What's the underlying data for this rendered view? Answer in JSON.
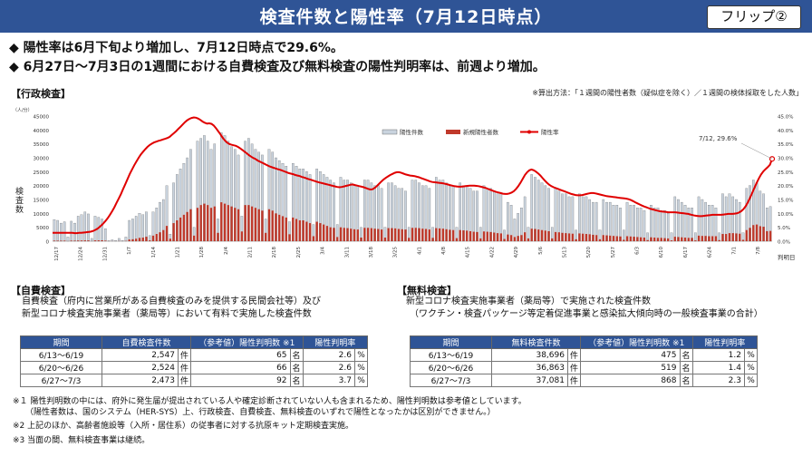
{
  "header": {
    "title": "検査件数と陽性率（7月12日時点）",
    "flip": "フリップ②"
  },
  "bullets": [
    "◆ 陽性率は6月下旬より増加し、7月12日時点で29.6%。",
    "◆ 6月27日～7月3日の1週間における自費検査及び無料検査の陽性判明率は、前週より増加。"
  ],
  "admin": {
    "label": "【行政検査】",
    "formula": "※算出方法：「１週間の陽性者数（疑似症を除く）／１週間の検体採取をした人数」"
  },
  "chart_data": {
    "type": "bar",
    "ylabel": "検査数",
    "yunit": "（人/分）",
    "xlabel": "判明日",
    "ylim": [
      0,
      45000
    ],
    "y2lim": [
      0,
      45
    ],
    "yticks": [
      "0",
      "5000",
      "10000",
      "15000",
      "20000",
      "25000",
      "30000",
      "35000",
      "40000",
      "45000"
    ],
    "y2ticks": [
      "0.0%",
      "5.0%",
      "10.0%",
      "15.0%",
      "20.0%",
      "25.0%",
      "30.0%",
      "35.0%",
      "40.0%",
      "45.0%"
    ],
    "xticks": [
      "12/17",
      "12/24",
      "12/31",
      "1/7",
      "1/14",
      "1/21",
      "1/28",
      "2/4",
      "2/11",
      "2/18",
      "2/25",
      "3/4",
      "3/11",
      "3/18",
      "3/25",
      "4/1",
      "4/8",
      "4/15",
      "4/22",
      "4/29",
      "5/6",
      "5/13",
      "5/20",
      "5/27",
      "6/3",
      "6/10",
      "6/17",
      "6/24",
      "7/1",
      "7/8"
    ],
    "legend": [
      "陽性件数",
      "新規陽性者数",
      "陽性率"
    ],
    "colors": {
      "tests": "#c9d3de",
      "positives": "#c0392b",
      "rate": "#e00000"
    },
    "annotation": "7/12, 29.6%",
    "series": [
      {
        "name": "陽性件数",
        "values": [
          7800,
          7500,
          6500,
          7000,
          1500,
          7200,
          6500,
          9000,
          9500,
          10500,
          9800,
          1000,
          9000,
          8600,
          8000,
          4500,
          200,
          500,
          300,
          1000,
          300,
          1500,
          7500,
          8000,
          9000,
          10000,
          9500,
          10500,
          2000,
          10500,
          12000,
          14000,
          15000,
          20000,
          2500,
          21000,
          24000,
          26000,
          28000,
          30000,
          33000,
          5000,
          36000,
          37000,
          38000,
          36000,
          33000,
          35000,
          8000,
          39000,
          38000,
          36000,
          34000,
          33000,
          31000,
          9000,
          36000,
          37000,
          35000,
          33000,
          32000,
          31000,
          8000,
          33000,
          32000,
          30000,
          29000,
          28000,
          27000,
          7000,
          28000,
          27000,
          26000,
          26000,
          25000,
          24000,
          6000,
          26000,
          25000,
          24000,
          23000,
          22000,
          21000,
          6000,
          23000,
          22000,
          22000,
          21000,
          20000,
          20000,
          5000,
          22000,
          22000,
          21000,
          20000,
          20000,
          19000,
          5000,
          21000,
          21000,
          20000,
          19000,
          19000,
          18000,
          5000,
          22000,
          22000,
          21000,
          20000,
          20000,
          19000,
          5000,
          23000,
          22000,
          22000,
          21000,
          20000,
          20000,
          5000,
          21000,
          20000,
          20000,
          19000,
          18000,
          18000,
          5000,
          20000,
          19000,
          19000,
          18000,
          17000,
          17000,
          4000,
          14000,
          13000,
          8000,
          10000,
          12000,
          16000,
          5000,
          24000,
          23000,
          22000,
          21000,
          20000,
          19000,
          5000,
          19000,
          18000,
          17000,
          17000,
          16000,
          16000,
          4000,
          17000,
          16000,
          16000,
          15000,
          14000,
          14000,
          4000,
          15000,
          14000,
          14000,
          13000,
          13000,
          12000,
          4000,
          14000,
          13000,
          13000,
          12000,
          12000,
          11000,
          3000,
          13000,
          12000,
          12000,
          11000,
          11000,
          10000,
          3000,
          16000,
          15000,
          14000,
          13000,
          12000,
          12000,
          3000,
          16000,
          15000,
          14000,
          13000,
          13000,
          12000,
          3000,
          17000,
          16000,
          17000,
          16000,
          15000,
          14000,
          3000,
          19000,
          20000,
          22000,
          21000,
          18000,
          17000,
          12000,
          12500
        ]
      },
      {
        "name": "新規陽性者数",
        "values": [
          200,
          200,
          180,
          200,
          40,
          200,
          190,
          250,
          260,
          300,
          280,
          40,
          300,
          310,
          320,
          200,
          20,
          30,
          20,
          50,
          20,
          100,
          600,
          700,
          900,
          1200,
          1300,
          1600,
          300,
          2000,
          2600,
          3200,
          4000,
          5500,
          900,
          6500,
          7500,
          8500,
          9500,
          10500,
          11500,
          2000,
          12000,
          13000,
          13500,
          13000,
          12000,
          12500,
          3000,
          14000,
          13500,
          13000,
          12500,
          12000,
          11500,
          3500,
          13000,
          13000,
          12500,
          12000,
          11500,
          11000,
          3000,
          11500,
          11000,
          10000,
          9500,
          9000,
          8500,
          2500,
          8500,
          8000,
          7500,
          7500,
          7000,
          6500,
          1800,
          7000,
          6500,
          6000,
          5500,
          5000,
          4800,
          1500,
          5000,
          4800,
          4700,
          4500,
          4300,
          4200,
          1300,
          4800,
          4800,
          4700,
          4500,
          4400,
          4200,
          1300,
          4700,
          4700,
          4600,
          4400,
          4300,
          4200,
          1200,
          4800,
          4800,
          4700,
          4500,
          4400,
          4200,
          1200,
          4700,
          4600,
          4500,
          4300,
          4100,
          4000,
          1100,
          4000,
          3900,
          3800,
          3600,
          3400,
          3300,
          1000,
          3500,
          3400,
          3300,
          3100,
          2900,
          2800,
          800,
          2400,
          2200,
          1500,
          1900,
          2200,
          3200,
          1000,
          4500,
          4400,
          4200,
          4000,
          3800,
          3600,
          1000,
          3300,
          3200,
          3000,
          2900,
          2800,
          2700,
          700,
          2800,
          2700,
          2600,
          2500,
          2300,
          2200,
          700,
          2200,
          2100,
          2000,
          1900,
          1800,
          1700,
          500,
          1800,
          1700,
          1600,
          1500,
          1400,
          1300,
          400,
          1400,
          1300,
          1200,
          1200,
          1100,
          1000,
          300,
          1600,
          1500,
          1400,
          1300,
          1200,
          1200,
          300,
          2000,
          1900,
          1900,
          1800,
          1800,
          1800,
          400,
          2600,
          2600,
          2900,
          2900,
          2800,
          2700,
          500,
          4000,
          4800,
          5800,
          6000,
          5400,
          5200,
          3600,
          3700
        ]
      },
      {
        "name": "陽性率",
        "values": [
          3.0,
          3.0,
          3.0,
          3.0,
          3.0,
          3.0,
          3.0,
          3.0,
          3.0,
          3.0,
          2.9,
          2.9,
          3.0,
          3.0,
          3.1,
          3.2,
          3.3,
          3.4,
          3.6,
          3.9,
          4.3,
          4.9,
          5.6,
          6.4,
          7.3,
          8.3,
          9.5,
          10.8,
          12.2,
          13.8,
          15.4,
          17.0,
          18.8,
          20.6,
          22.4,
          24.2,
          25.8,
          27.3,
          28.7,
          30.0,
          31.2,
          32.2,
          33.1,
          33.9,
          34.6,
          35.1,
          35.5,
          35.8,
          36.1,
          36.3,
          36.6,
          36.8,
          37.1,
          37.5,
          38.2,
          38.9,
          39.6,
          40.4,
          41.2,
          42.0,
          42.8,
          43.5,
          44.0,
          44.3,
          44.5,
          44.4,
          44.1,
          43.6,
          43.0,
          42.6,
          42.3,
          42.4,
          42.2,
          41.6,
          40.7,
          39.6,
          38.5,
          37.3,
          36.3,
          35.5,
          35.0,
          34.7,
          34.5,
          34.3,
          33.9,
          33.4,
          32.8,
          32.2,
          31.6,
          30.9,
          30.4,
          29.9,
          29.5,
          29.0,
          28.6,
          28.2,
          27.8,
          27.4,
          27.0,
          26.7,
          26.4,
          26.2,
          25.9,
          25.7,
          25.4,
          25.1,
          24.8,
          24.5,
          24.3,
          24.1,
          23.8,
          23.6,
          23.4,
          23.1,
          22.9,
          22.6,
          22.3,
          22.1,
          21.8,
          21.6,
          21.3,
          21.1,
          20.9,
          20.7,
          20.5,
          20.3,
          20.1,
          19.9,
          19.7,
          19.5,
          19.4,
          19.5,
          19.7,
          19.9,
          20.1,
          20.3,
          20.4,
          20.2,
          20.0,
          19.8,
          19.6,
          19.4,
          19.1,
          18.8,
          18.6,
          18.7,
          19.2,
          19.9,
          20.7,
          21.5,
          22.2,
          22.8,
          23.3,
          23.8,
          24.2,
          24.6,
          24.8,
          24.8,
          24.6,
          24.3,
          24.0,
          23.8,
          23.6,
          23.5,
          23.4,
          23.2,
          23.0,
          22.7,
          22.4,
          22.1,
          21.8,
          21.5,
          21.3,
          21.2,
          21.1,
          21.0,
          20.9,
          20.8,
          20.6,
          20.4,
          20.2,
          20.0,
          19.8,
          19.7,
          19.6,
          19.6,
          19.7,
          19.8,
          19.9,
          20.0,
          20.0,
          20.0,
          19.9,
          19.8,
          19.6,
          19.4,
          19.2,
          18.9,
          18.6,
          18.3,
          18.0,
          17.7,
          17.5,
          17.3,
          17.1,
          17.0,
          17.0,
          17.2,
          17.5,
          18.0,
          18.8,
          19.8,
          21.0,
          22.4,
          23.8,
          24.8,
          25.5,
          25.8,
          25.5,
          25.0,
          24.4,
          23.6,
          22.7,
          21.8,
          21.0,
          20.3,
          19.8,
          19.4,
          19.1,
          18.8,
          18.5,
          18.2,
          17.9,
          17.6,
          17.3,
          17.0,
          16.8,
          16.6,
          16.5,
          16.5,
          16.6,
          16.8,
          17.0,
          17.2,
          17.3,
          17.3,
          17.2,
          17.0,
          16.8,
          16.6,
          16.4,
          16.2,
          16.1,
          16.0,
          15.9,
          15.8,
          15.7,
          15.6,
          15.5,
          15.4,
          15.3,
          15.1,
          14.8,
          14.4,
          14.0,
          13.6,
          13.2,
          12.8,
          12.5,
          12.2,
          11.9,
          11.6,
          11.4,
          11.2,
          11.0,
          10.8,
          10.7,
          10.6,
          10.5,
          10.4,
          10.4,
          10.4,
          10.4,
          10.3,
          10.2,
          10.1,
          10.0,
          9.9,
          9.8,
          9.6,
          9.4,
          9.2,
          9.1,
          9.0,
          9.0,
          9.1,
          9.2,
          9.3,
          9.4,
          9.5,
          9.5,
          9.5,
          9.5,
          9.5,
          9.6,
          9.7,
          9.8,
          9.8,
          9.8,
          9.9,
          10.0,
          10.3,
          10.8,
          11.5,
          12.6,
          14.0,
          15.6,
          17.4,
          19.2,
          21.0,
          22.6,
          24.0,
          25.1,
          25.9,
          26.6,
          27.5,
          29.6
        ]
      }
    ]
  },
  "self_test": {
    "label": "【自費検査】",
    "desc1": "自費検査（府内に営業所がある自費検査のみを提供する民間会社等）及び",
    "desc2": "新型コロナ検査実施事業者（薬局等）において有料で実施した検査件数",
    "headers": [
      "期間",
      "自費検査件数",
      "（参考値）陽性判明数 ※1",
      "陽性判明率"
    ],
    "rows": [
      [
        "6/13～6/19",
        "2,547",
        "件",
        "65",
        "名",
        "2.6",
        "%"
      ],
      [
        "6/20～6/26",
        "2,524",
        "件",
        "66",
        "名",
        "2.6",
        "%"
      ],
      [
        "6/27～7/3",
        "2,473",
        "件",
        "92",
        "名",
        "3.7",
        "%"
      ]
    ]
  },
  "free_test": {
    "label": "【無料検査】",
    "desc1": "新型コロナ検査実施事業者（薬局等）で実施された検査件数",
    "desc2": "（ワクチン・検査パッケージ等定着促進事業と感染拡大傾向時の一般検査事業の合計）",
    "headers": [
      "期間",
      "無料検査件数",
      "（参考値）陽性判明数 ※1",
      "陽性判明率"
    ],
    "rows": [
      [
        "6/13～6/19",
        "38,696",
        "件",
        "475",
        "名",
        "1.2",
        "%"
      ],
      [
        "6/20～6/26",
        "36,863",
        "件",
        "519",
        "名",
        "1.4",
        "%"
      ],
      [
        "6/27～7/3",
        "37,081",
        "件",
        "868",
        "名",
        "2.3",
        "%"
      ]
    ]
  },
  "notes": [
    "※１ 陽性判明数の中には、府外に発生届が提出されている人や確定診断されていない人も含まれるため、陽性判明数は参考値としています。",
    "（陽性者数は、国のシステム（HER-SYS）上、行政検査、自費検査、無料検査のいずれで陽性となったかは区別ができません。）",
    "※2 上記のほか、高齢者施設等（入所・居住系）の従事者に対する抗原キット定期検査実施。",
    "※3 当面の間、無料検査事業は継続。"
  ]
}
